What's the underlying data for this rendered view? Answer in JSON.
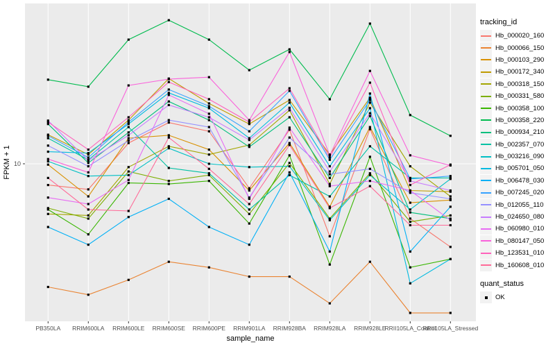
{
  "figure": {
    "panel_bg": "#EBEBEB",
    "grid_color": "#FFFFFF",
    "tick_text_color": "#4D4D4D",
    "axis_title_color": "#000000"
  },
  "chart_data": {
    "type": "line",
    "title": "",
    "xlabel": "sample_name",
    "ylabel": "FPKM + 1",
    "y_scale": "log10",
    "y_ticks": [
      {
        "value": 10,
        "label": "10"
      }
    ],
    "ylim": [
      1.43,
      71
    ],
    "grid": "major",
    "legend_position": "right",
    "point_shape": "square",
    "point_color": "#000000",
    "categories": [
      "PB350LA",
      "RRIM600LA",
      "RRIM600LE",
      "RRIM600SE",
      "RRIM600PE",
      "RRIM901LA",
      "RRIM928BA",
      "RRIM928LA",
      "RRIM928LE",
      "RRII105LA_Control",
      "RRII105LA_Stressed"
    ],
    "legend": {
      "series_title": "tracking_id",
      "status_title": "quant_status",
      "status_items": [
        {
          "label": "OK"
        }
      ]
    },
    "series": [
      {
        "name": "Hb_000020_160",
        "color": "#F8766D",
        "values": [
          7.7,
          7.3,
          12.9,
          16.6,
          14.9,
          7.4,
          15.2,
          4.1,
          15.3,
          5.1,
          3.6
        ]
      },
      {
        "name": "Hb_000066_150",
        "color": "#EA8331",
        "values": [
          2.2,
          2.0,
          2.4,
          3.0,
          2.8,
          2.5,
          2.5,
          1.8,
          3.0,
          1.6,
          1.6
        ]
      },
      {
        "name": "Hb_000103_290",
        "color": "#D89000",
        "values": [
          9.9,
          6.7,
          13.7,
          14.2,
          11.9,
          7.2,
          12.9,
          5.9,
          15.7,
          6.2,
          6.4
        ]
      },
      {
        "name": "Hb_000172_340",
        "color": "#C09B00",
        "values": [
          14.3,
          11.2,
          17.1,
          28.5,
          21.0,
          16.3,
          21.9,
          11.2,
          22.5,
          7.2,
          7.1
        ]
      },
      {
        "name": "Hb_000318_150",
        "color": "#A3A500",
        "values": [
          5.4,
          5.3,
          9.6,
          12.4,
          11.2,
          12.6,
          19.3,
          7.8,
          21.2,
          9.7,
          6.7
        ]
      },
      {
        "name": "Hb_000331_580",
        "color": "#7CAE00",
        "values": [
          5.8,
          5.1,
          9.1,
          8.1,
          8.7,
          5.4,
          10.1,
          5.1,
          8.9,
          4.9,
          5.3
        ]
      },
      {
        "name": "Hb_000358_100",
        "color": "#39B600",
        "values": [
          5.7,
          4.2,
          7.9,
          7.8,
          8.1,
          4.8,
          11.1,
          2.9,
          10.9,
          2.8,
          3.1
        ]
      },
      {
        "name": "Hb_000358_220",
        "color": "#00BB4E",
        "values": [
          28.1,
          25.8,
          46.0,
          58.4,
          46.0,
          31.6,
          40.8,
          22.1,
          56.0,
          18.2,
          14.1
        ]
      },
      {
        "name": "Hb_000934_210",
        "color": "#00BF7D",
        "values": [
          16.3,
          10.1,
          14.7,
          21.5,
          17.1,
          12.3,
          17.7,
          8.4,
          18.0,
          5.5,
          5.1
        ]
      },
      {
        "name": "Hb_002357_070",
        "color": "#00C1A3",
        "values": [
          13.7,
          10.5,
          15.7,
          9.5,
          8.9,
          5.7,
          8.7,
          6.7,
          12.4,
          8.4,
          8.4
        ]
      },
      {
        "name": "Hb_003216_090",
        "color": "#00BFC4",
        "values": [
          10.3,
          8.6,
          8.7,
          12.1,
          10.0,
          9.6,
          9.7,
          5.0,
          8.7,
          5.7,
          8.3
        ]
      },
      {
        "name": "Hb_005701_050",
        "color": "#00BAE0",
        "values": [
          11.6,
          11.4,
          16.3,
          23.9,
          19.8,
          13.7,
          21.2,
          9.7,
          19.8,
          2.3,
          3.1
        ]
      },
      {
        "name": "Hb_006478_030",
        "color": "#00B0F6",
        "values": [
          4.6,
          3.7,
          5.2,
          6.5,
          4.6,
          3.7,
          9.0,
          3.4,
          23.7,
          3.4,
          5.9
        ]
      },
      {
        "name": "Hb_007245_020",
        "color": "#35A2FF",
        "values": [
          14.1,
          10.8,
          16.7,
          24.9,
          20.3,
          14.9,
          24.5,
          10.5,
          21.9,
          8.3,
          8.6
        ]
      },
      {
        "name": "Hb_012055_110",
        "color": "#9590FF",
        "values": [
          12.5,
          9.7,
          13.3,
          17.1,
          15.7,
          6.6,
          13.8,
          8.8,
          9.4,
          7.0,
          6.5
        ]
      },
      {
        "name": "Hb_024650_080",
        "color": "#C77CFF",
        "values": [
          17.0,
          10.4,
          14.2,
          20.6,
          17.7,
          13.4,
          19.9,
          9.1,
          18.6,
          8.1,
          7.2
        ]
      },
      {
        "name": "Hb_060980_010",
        "color": "#E76BF3",
        "values": [
          6.6,
          6.1,
          8.2,
          23.3,
          18.5,
          6.5,
          15.6,
          7.6,
          8.1,
          7.2,
          5.0
        ]
      },
      {
        "name": "Hb_080147_050",
        "color": "#FA62DB",
        "values": [
          10.6,
          9.0,
          26.2,
          28.3,
          29.0,
          17.1,
          39.5,
          11.1,
          31.3,
          11.1,
          9.8
        ]
      },
      {
        "name": "Hb_123531_010",
        "color": "#FF62BC",
        "values": [
          16.7,
          11.9,
          17.7,
          27.3,
          22.1,
          16.7,
          25.3,
          10.8,
          27.1,
          7.7,
          9.9
        ]
      },
      {
        "name": "Hb_160608_010",
        "color": "#FF6A98",
        "values": [
          8.4,
          5.7,
          5.6,
          13.8,
          9.4,
          6.1,
          12.6,
          5.8,
          7.6,
          4.7,
          4.7
        ]
      }
    ]
  }
}
